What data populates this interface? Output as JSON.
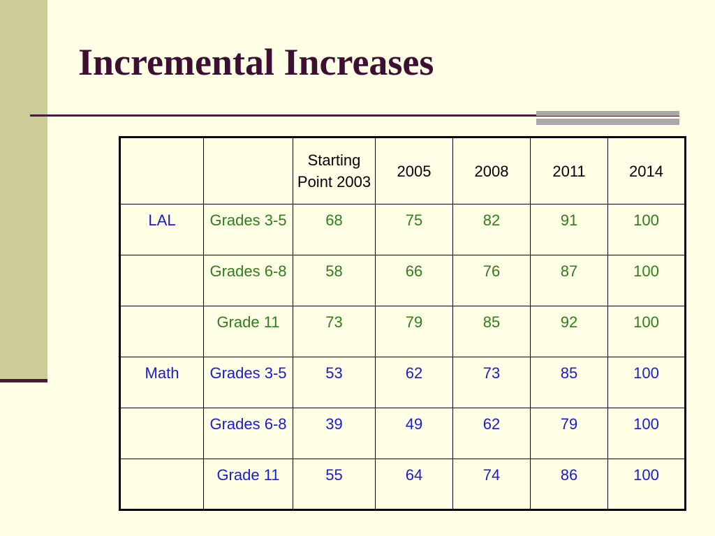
{
  "slide": {
    "title": "Incremental Increases"
  },
  "table": {
    "headers": [
      "",
      "",
      "Starting Point 2003",
      "2005",
      "2008",
      "2011",
      "2014"
    ],
    "rows": [
      {
        "subject": "LAL",
        "grade": "Grades 3-5",
        "values": [
          "68",
          "75",
          "82",
          "91",
          "100"
        ]
      },
      {
        "subject": "",
        "grade": "Grades 6-8",
        "values": [
          "58",
          "66",
          "76",
          "87",
          "100"
        ]
      },
      {
        "subject": "",
        "grade": "Grade 11",
        "values": [
          "73",
          "79",
          "85",
          "92",
          "100"
        ]
      },
      {
        "subject": "Math",
        "grade": "Grades 3-5",
        "values": [
          "53",
          "62",
          "73",
          "85",
          "100"
        ]
      },
      {
        "subject": "",
        "grade": "Grades 6-8",
        "values": [
          "39",
          "49",
          "62",
          "79",
          "100"
        ]
      },
      {
        "subject": "",
        "grade": "Grade 11",
        "values": [
          "55",
          "64",
          "74",
          "86",
          "100"
        ]
      }
    ]
  },
  "colors": {
    "background": "#ffffe5",
    "title": "#3d0f33",
    "lal_text": "#2e7d1a",
    "math_text": "#1a1ad6"
  }
}
